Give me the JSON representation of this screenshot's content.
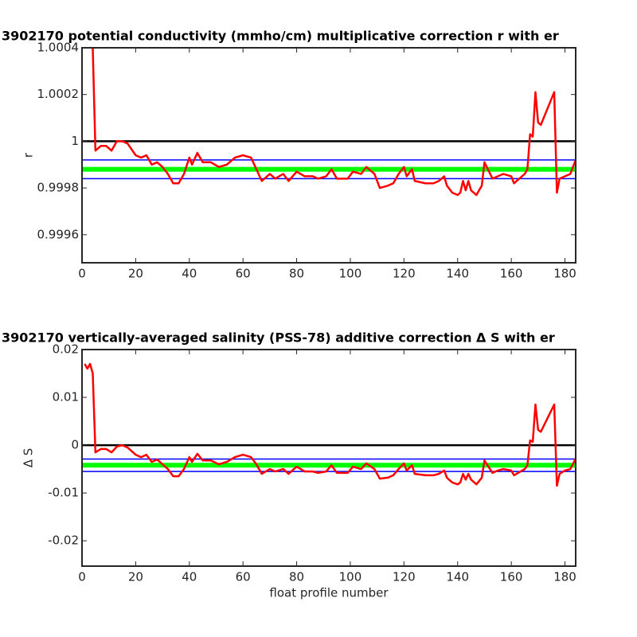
{
  "chart_data": [
    {
      "type": "line",
      "title": "3902170 potential conductivity (mmho/cm) multiplicative correction r with er",
      "ylabel": "r",
      "xlim": [
        0,
        184
      ],
      "ylim": [
        0.99948,
        1.0004
      ],
      "xticks": [
        0,
        20,
        40,
        60,
        80,
        100,
        120,
        140,
        160,
        180
      ],
      "yticks": [
        0.9996,
        0.9998,
        1,
        1.0002,
        1.0004
      ],
      "series": [
        {
          "color": "#000000",
          "x": [
            0,
            184
          ],
          "values": [
            1,
            1
          ]
        },
        {
          "color": "#00ff00",
          "error_color": "#0000ff",
          "x": [
            0,
            184
          ],
          "values": [
            0.99988,
            0.99988
          ],
          "errors": [
            4e-05,
            4e-05
          ]
        },
        {
          "color": "#ff0000",
          "x": [
            4,
            5,
            7,
            9,
            11,
            13,
            15,
            17,
            20,
            22,
            24,
            26,
            28,
            30,
            32,
            34,
            36,
            38,
            40,
            41,
            43,
            45,
            48,
            51,
            54,
            57,
            60,
            63,
            65,
            67,
            70,
            72,
            75,
            77,
            80,
            83,
            86,
            88,
            91,
            93,
            95,
            99,
            101,
            104,
            106,
            109,
            111,
            114,
            116,
            118,
            120,
            121,
            123,
            124,
            128,
            131,
            133,
            135,
            136,
            138,
            140,
            141,
            142,
            143,
            144,
            145,
            147,
            149,
            150,
            153,
            155,
            157,
            160,
            161,
            165,
            166,
            167,
            168,
            169,
            170,
            171,
            176,
            177,
            178,
            180,
            182,
            184
          ],
          "values": [
            1.0004,
            0.99996,
            0.99998,
            0.99998,
            0.99996,
            1.0,
            1.0,
            0.99999,
            0.99994,
            0.99993,
            0.99994,
            0.9999,
            0.99991,
            0.99989,
            0.99986,
            0.99982,
            0.99982,
            0.99986,
            0.99993,
            0.9999,
            0.99995,
            0.99991,
            0.99991,
            0.99989,
            0.9999,
            0.99993,
            0.99994,
            0.99993,
            0.99988,
            0.99983,
            0.99986,
            0.99984,
            0.99986,
            0.99983,
            0.99987,
            0.99985,
            0.99985,
            0.99984,
            0.99985,
            0.99988,
            0.99984,
            0.99984,
            0.99987,
            0.99986,
            0.99989,
            0.99986,
            0.9998,
            0.99981,
            0.99982,
            0.99986,
            0.99989,
            0.99985,
            0.99988,
            0.99983,
            0.99982,
            0.99982,
            0.99983,
            0.99985,
            0.99981,
            0.99978,
            0.99977,
            0.99978,
            0.99983,
            0.99979,
            0.99983,
            0.99979,
            0.99977,
            0.99981,
            0.99991,
            0.99984,
            0.99985,
            0.99986,
            0.99985,
            0.99982,
            0.99986,
            0.99988,
            1.00003,
            1.00002,
            1.00021,
            1.00008,
            1.00007,
            1.00021,
            0.99978,
            0.99984,
            0.99985,
            0.99986,
            0.99992
          ]
        }
      ]
    },
    {
      "type": "line",
      "title": "3902170 vertically-averaged salinity (PSS-78) additive correction Δ S with er",
      "ylabel": "Δ S",
      "xlabel": "float profile number",
      "xlim": [
        0,
        184
      ],
      "ylim": [
        -0.0253,
        0.02
      ],
      "xticks": [
        0,
        20,
        40,
        60,
        80,
        100,
        120,
        140,
        160,
        180
      ],
      "yticks": [
        -0.02,
        -0.01,
        0,
        0.01,
        0.02
      ],
      "series": [
        {
          "color": "#000000",
          "x": [
            0,
            184
          ],
          "values": [
            0,
            0
          ]
        },
        {
          "color": "#00ff00",
          "error_color": "#0000ff",
          "x": [
            0,
            184
          ],
          "values": [
            -0.0042,
            -0.0042
          ],
          "errors": [
            0.0013,
            0.0013
          ]
        },
        {
          "color": "#ff0000",
          "x": [
            1,
            2,
            3,
            4,
            5,
            7,
            9,
            11,
            13,
            15,
            17,
            20,
            22,
            24,
            26,
            28,
            30,
            32,
            34,
            36,
            38,
            40,
            41,
            43,
            45,
            48,
            51,
            54,
            57,
            60,
            63,
            65,
            67,
            70,
            72,
            75,
            77,
            80,
            83,
            86,
            88,
            91,
            93,
            95,
            99,
            101,
            104,
            106,
            109,
            111,
            114,
            116,
            118,
            120,
            121,
            123,
            124,
            128,
            131,
            133,
            135,
            136,
            138,
            140,
            141,
            142,
            143,
            144,
            145,
            147,
            149,
            150,
            153,
            155,
            157,
            160,
            161,
            165,
            166,
            167,
            168,
            169,
            170,
            171,
            176,
            177,
            178,
            180,
            182,
            184
          ],
          "values": [
            0.017,
            0.016,
            0.017,
            0.015,
            -0.0015,
            -0.0008,
            -0.0008,
            -0.0015,
            -0.0003,
            0,
            -0.0005,
            -0.002,
            -0.0025,
            -0.002,
            -0.0035,
            -0.003,
            -0.004,
            -0.005,
            -0.0065,
            -0.0065,
            -0.005,
            -0.0025,
            -0.0035,
            -0.0018,
            -0.0032,
            -0.0032,
            -0.004,
            -0.0035,
            -0.0025,
            -0.002,
            -0.0025,
            -0.004,
            -0.006,
            -0.005,
            -0.0055,
            -0.005,
            -0.006,
            -0.0045,
            -0.0055,
            -0.0055,
            -0.0058,
            -0.0055,
            -0.0042,
            -0.0058,
            -0.0058,
            -0.0045,
            -0.005,
            -0.0038,
            -0.005,
            -0.007,
            -0.0068,
            -0.0063,
            -0.005,
            -0.0038,
            -0.0053,
            -0.0042,
            -0.006,
            -0.0063,
            -0.0063,
            -0.006,
            -0.0053,
            -0.0068,
            -0.0078,
            -0.0082,
            -0.0078,
            -0.006,
            -0.0072,
            -0.006,
            -0.0072,
            -0.0082,
            -0.0068,
            -0.0032,
            -0.0058,
            -0.0053,
            -0.005,
            -0.0053,
            -0.0063,
            -0.005,
            -0.0042,
            0.001,
            0.0007,
            0.0085,
            0.0032,
            0.0028,
            0.0085,
            -0.0085,
            -0.006,
            -0.0053,
            -0.005,
            -0.0028
          ]
        }
      ]
    }
  ]
}
